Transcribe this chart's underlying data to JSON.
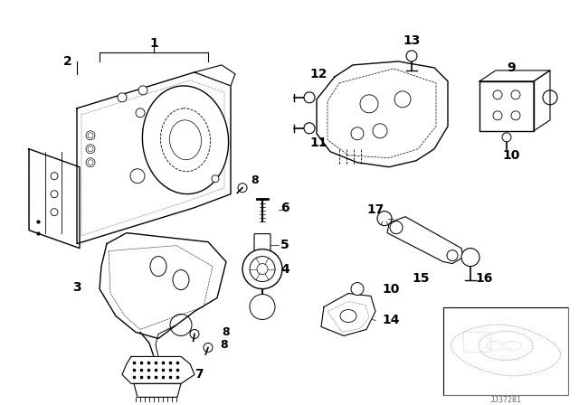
{
  "bg_color": "#ffffff",
  "line_color": "#000000",
  "fig_width": 6.4,
  "fig_height": 4.48,
  "dpi": 100,
  "watermark": "JJ37281",
  "font_size": 8,
  "font_size_label": 9,
  "font_size_watermark": 6
}
